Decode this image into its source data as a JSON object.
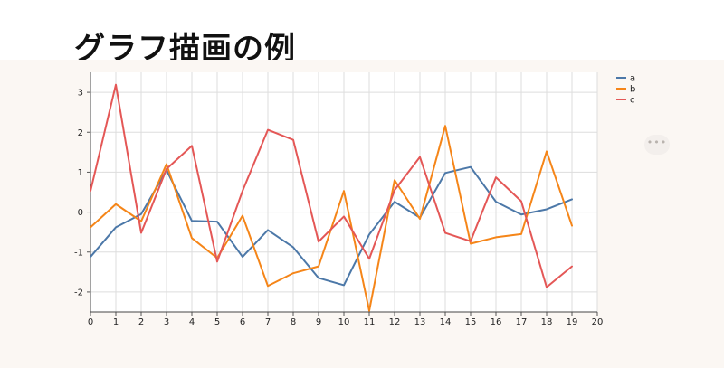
{
  "page": {
    "title": "グラフ描画の例",
    "more_label": "•••"
  },
  "chart_data": {
    "type": "line",
    "x": [
      0,
      1,
      2,
      3,
      4,
      5,
      6,
      7,
      8,
      9,
      10,
      11,
      12,
      13,
      14,
      15,
      16,
      17,
      18,
      19
    ],
    "xlim": [
      0,
      20
    ],
    "ylim": [
      -2.5,
      3.5
    ],
    "x_ticks": [
      "0",
      "1",
      "2",
      "3",
      "4",
      "5",
      "6",
      "7",
      "8",
      "9",
      "10",
      "11",
      "12",
      "13",
      "14",
      "15",
      "16",
      "17",
      "18",
      "19",
      "20"
    ],
    "y_ticks": [
      "3",
      "2",
      "1",
      "0",
      "-1",
      "-2"
    ],
    "y_tick_values": [
      3,
      2,
      1,
      0,
      -1,
      -2
    ],
    "grid": true,
    "legend_position": "right-top",
    "series": [
      {
        "name": "a",
        "color": "#4c78a8",
        "values": [
          -1.12,
          -0.38,
          -0.05,
          1.05,
          -0.22,
          -0.24,
          -1.12,
          -0.45,
          -0.88,
          -1.65,
          -1.83,
          -0.56,
          0.26,
          -0.14,
          0.98,
          1.13,
          0.26,
          -0.06,
          0.07,
          0.32
        ]
      },
      {
        "name": "b",
        "color": "#f58518",
        "values": [
          -0.38,
          0.2,
          -0.23,
          1.2,
          -0.65,
          -1.15,
          -0.09,
          -1.85,
          -1.53,
          -1.36,
          0.53,
          -2.47,
          0.8,
          -0.17,
          2.16,
          -0.79,
          -0.63,
          -0.55,
          1.52,
          -0.34
        ]
      },
      {
        "name": "c",
        "color": "#e45756",
        "values": [
          0.53,
          3.19,
          -0.52,
          1.08,
          1.66,
          -1.24,
          0.53,
          2.06,
          1.81,
          -0.74,
          -0.11,
          -1.17,
          0.55,
          1.38,
          -0.52,
          -0.73,
          0.87,
          0.27,
          -1.88,
          -1.36
        ]
      }
    ]
  }
}
